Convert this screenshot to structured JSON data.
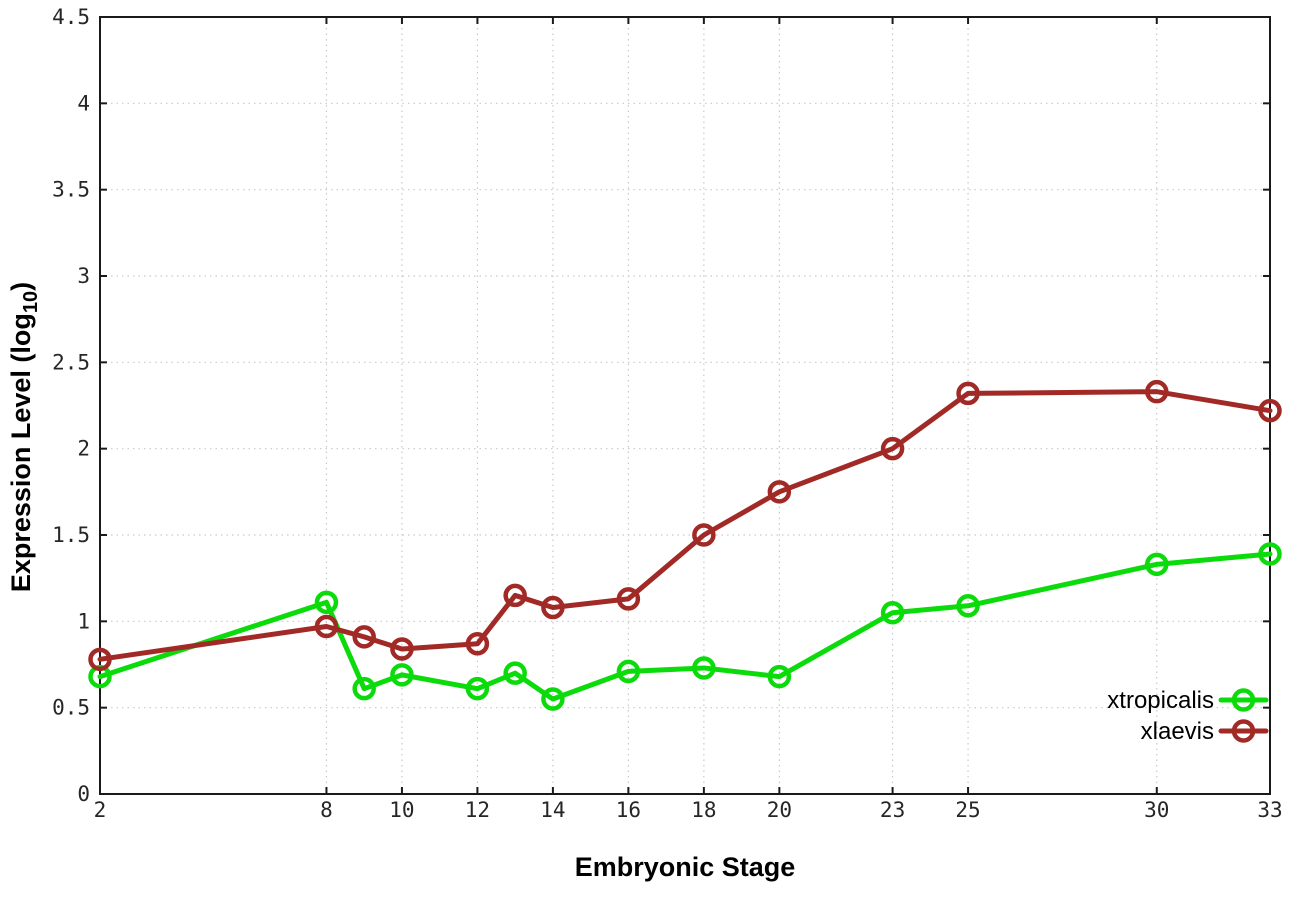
{
  "chart_data": {
    "type": "line",
    "title": "",
    "xlabel": "Embryonic Stage",
    "ylabel_main": "Expression Level (log",
    "ylabel_sub": "10",
    "ylabel_close": ")",
    "x": [
      2,
      8,
      9,
      10,
      12,
      13,
      14,
      16,
      18,
      20,
      23,
      25,
      30,
      33
    ],
    "series": [
      {
        "name": "xtropicalis",
        "color": "#0bdb0b",
        "values": [
          0.68,
          1.11,
          0.61,
          0.69,
          0.61,
          0.7,
          0.55,
          0.71,
          0.73,
          0.68,
          1.05,
          1.09,
          1.33,
          1.39
        ]
      },
      {
        "name": "xlaevis",
        "color": "#a22a26",
        "values": [
          0.78,
          0.97,
          0.91,
          0.84,
          0.87,
          1.15,
          1.08,
          1.13,
          1.5,
          1.75,
          2.0,
          2.32,
          2.33,
          2.22
        ]
      }
    ],
    "x_ticks": [
      2,
      8,
      10,
      12,
      14,
      16,
      18,
      20,
      23,
      25,
      30,
      33
    ],
    "y_ticks": [
      "0",
      "0.5",
      "1",
      "1.5",
      "2",
      "2.5",
      "3",
      "3.5",
      "4",
      "4.5"
    ],
    "xlim": [
      2,
      33
    ],
    "ylim": [
      0,
      4.5
    ],
    "grid": true,
    "legend_position": "inside-bottom-right",
    "grid_color": "#c9c9c9",
    "border_color": "#1a1a1a",
    "tick_label_color": "#262626"
  }
}
